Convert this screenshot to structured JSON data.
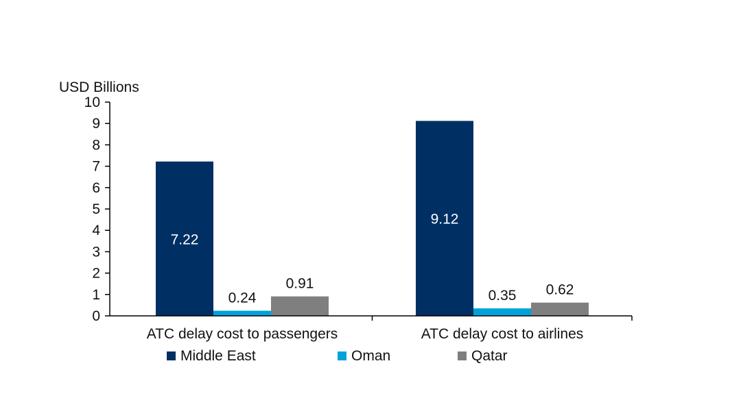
{
  "chart_data": {
    "type": "bar",
    "title": "",
    "ylabel": "USD Billions",
    "xlabel": "",
    "ylim": [
      0,
      10
    ],
    "yticks": [
      0,
      1,
      2,
      3,
      4,
      5,
      6,
      7,
      8,
      9,
      10
    ],
    "grid": false,
    "legend_position": "bottom",
    "categories": [
      "ATC delay cost to passengers",
      "ATC delay cost to airlines"
    ],
    "series": [
      {
        "name": "Middle East",
        "color": "#002f63",
        "values": [
          7.22,
          9.12
        ],
        "value_labels": [
          "7.22",
          "9.12"
        ]
      },
      {
        "name": "Oman",
        "color": "#00a3d9",
        "values": [
          0.24,
          0.35
        ],
        "value_labels": [
          "0.24",
          "0.35"
        ]
      },
      {
        "name": "Qatar",
        "color": "#7f7f7f",
        "values": [
          0.91,
          0.62
        ],
        "value_labels": [
          "0.91",
          "0.62"
        ]
      }
    ]
  }
}
